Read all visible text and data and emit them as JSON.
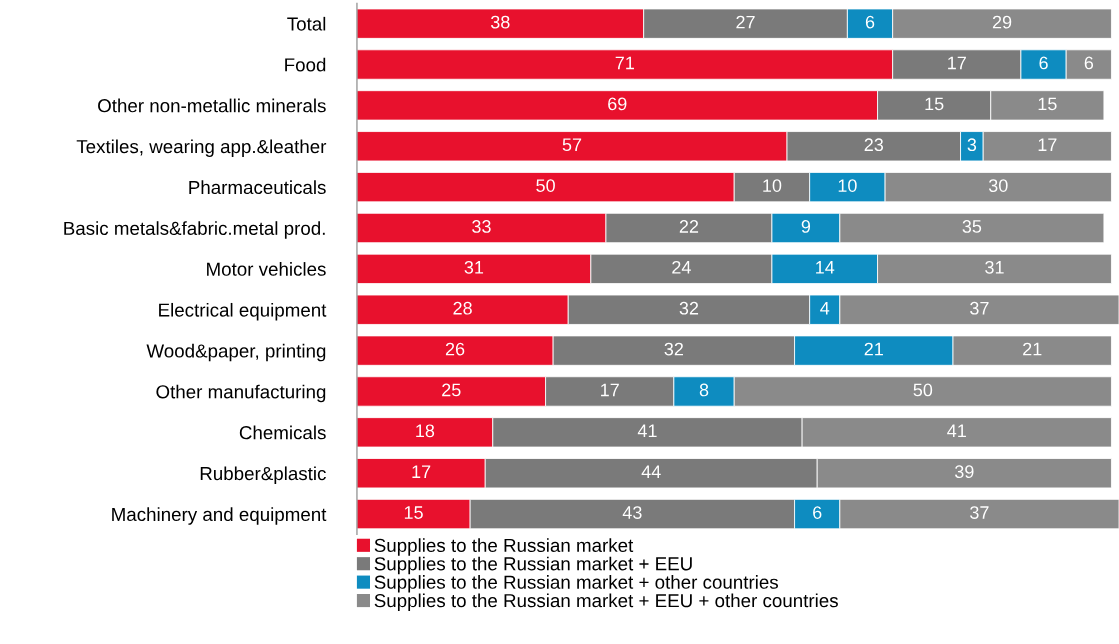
{
  "chart_data": {
    "type": "bar",
    "orientation": "horizontal",
    "stacked": true,
    "data_labels": true,
    "legend": "bottom",
    "tick_labels": "y",
    "grid": false,
    "categories": [
      "Total",
      "Food",
      "Other non-metallic minerals",
      "Textiles, wearing app.&leather",
      "Pharmaceuticals",
      "Basic metals&fabric.metal prod.",
      "Motor vehicles",
      "Electrical equipment",
      "Wood&paper, printing",
      "Other manufacturing",
      "Chemicals",
      "Rubber&plastic",
      "Machinery and equipment"
    ],
    "series": [
      {
        "name": "Supplies to the Russian market",
        "color": "#e8112d",
        "values": [
          38,
          71,
          69,
          57,
          50,
          33,
          31,
          28,
          26,
          25,
          18,
          17,
          15
        ]
      },
      {
        "name": "Supplies to the Russian market + EEU",
        "color": "#7a7a7a",
        "values": [
          27,
          17,
          15,
          23,
          10,
          22,
          24,
          32,
          32,
          17,
          41,
          44,
          43
        ]
      },
      {
        "name": "Supplies to the Russian market + other countries",
        "color": "#0e8cc0",
        "values": [
          6,
          6,
          null,
          3,
          10,
          9,
          14,
          4,
          21,
          8,
          null,
          null,
          6
        ]
      },
      {
        "name": "Supplies to the Russian market + EEU + other countries",
        "color": "#8a8a8a",
        "values": [
          29,
          6,
          15,
          17,
          30,
          35,
          31,
          37,
          21,
          50,
          41,
          39,
          37
        ]
      }
    ]
  }
}
